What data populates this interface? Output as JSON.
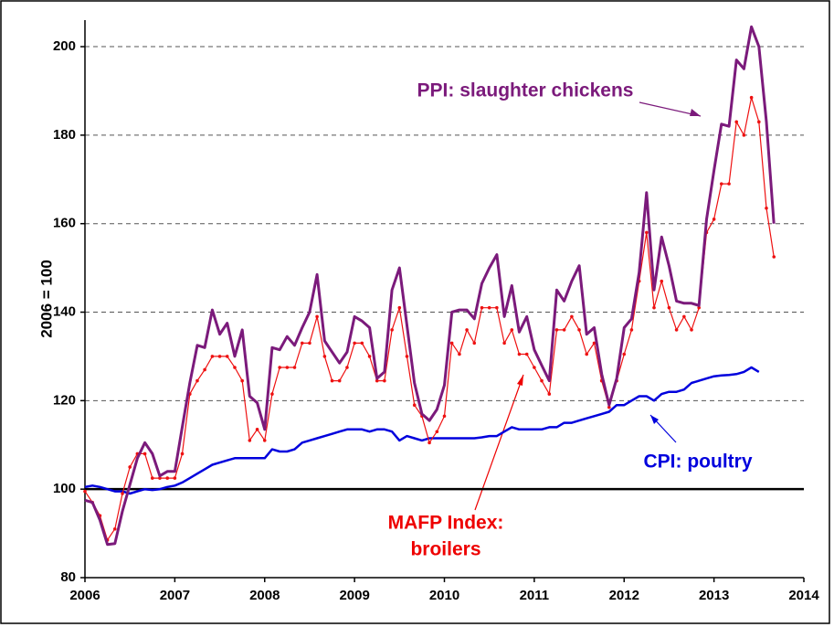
{
  "chart_data": {
    "type": "line",
    "ylabel": "2006 = 100",
    "annotations": [
      {
        "text": "PPI: slaughter chickens",
        "color": "#7b1a7b"
      },
      {
        "text": "CPI: poultry",
        "color": "#0000dd"
      },
      {
        "text": "MAFP Index:",
        "color": "#ee0000"
      },
      {
        "text": "broilers",
        "color": "#ee0000"
      }
    ],
    "x": [
      2006,
      2006.083,
      2006.167,
      2006.25,
      2006.333,
      2006.417,
      2006.5,
      2006.583,
      2006.667,
      2006.75,
      2006.833,
      2006.917,
      2007,
      2007.083,
      2007.167,
      2007.25,
      2007.333,
      2007.417,
      2007.5,
      2007.583,
      2007.667,
      2007.75,
      2007.833,
      2007.917,
      2008,
      2008.083,
      2008.167,
      2008.25,
      2008.333,
      2008.417,
      2008.5,
      2008.583,
      2008.667,
      2008.75,
      2008.833,
      2008.917,
      2009,
      2009.083,
      2009.167,
      2009.25,
      2009.333,
      2009.417,
      2009.5,
      2009.583,
      2009.667,
      2009.75,
      2009.833,
      2009.917,
      2010,
      2010.083,
      2010.167,
      2010.25,
      2010.333,
      2010.417,
      2010.5,
      2010.583,
      2010.667,
      2010.75,
      2010.833,
      2010.917,
      2011,
      2011.083,
      2011.167,
      2011.25,
      2011.333,
      2011.417,
      2011.5,
      2011.583,
      2011.667,
      2011.75,
      2011.833,
      2011.917,
      2012,
      2012.083,
      2012.167,
      2012.25,
      2012.333,
      2012.417,
      2012.5,
      2012.583,
      2012.667,
      2012.75,
      2012.833,
      2012.917,
      2013,
      2013.083,
      2013.167,
      2013.25,
      2013.333,
      2013.417,
      2013.5,
      2013.583,
      2013.667
    ],
    "series": [
      {
        "name": "PPI: slaughter chickens",
        "color": "#7b1a7b",
        "width": 3,
        "values": [
          97.5,
          97,
          93,
          87.5,
          87.7,
          95,
          101,
          107,
          110.5,
          108,
          103,
          104,
          104,
          114,
          124,
          132.5,
          132,
          140.5,
          135,
          137.5,
          130,
          136,
          121,
          119.5,
          113.5,
          132,
          131.5,
          134.5,
          132.5,
          136.5,
          140,
          148.5,
          133.5,
          131,
          128.5,
          131,
          139,
          138,
          136.5,
          125,
          126.5,
          145,
          150,
          137,
          124,
          117,
          115.5,
          118,
          123.5,
          140,
          140.5,
          140.5,
          138.5,
          146.5,
          150,
          153,
          139,
          146,
          135.5,
          139,
          131.5,
          128,
          124.5,
          145,
          142.5,
          147,
          150.5,
          135,
          136.5,
          126,
          119,
          125,
          136.5,
          138.5,
          149,
          167,
          145,
          157,
          150.5,
          142.5,
          142,
          142,
          141.5,
          161,
          172,
          182.5,
          182,
          197,
          195,
          204.5,
          200,
          183,
          160
        ]
      },
      {
        "name": "MAFP Index: broilers",
        "color": "#ee1111",
        "width": 1.2,
        "values": [
          99.5,
          97,
          94,
          88.5,
          91,
          99,
          105,
          108,
          108,
          102.5,
          102.5,
          102.5,
          102.5,
          108,
          121.5,
          124.5,
          127,
          130,
          130,
          130,
          127.5,
          124.5,
          111,
          113.5,
          111,
          121.5,
          127.5,
          127.5,
          127.5,
          133,
          133,
          139,
          130,
          124.5,
          124.5,
          127.5,
          133,
          133,
          130,
          124.5,
          124.5,
          136,
          141,
          130,
          119,
          116.5,
          110.5,
          113,
          116.5,
          133,
          130.5,
          136,
          133,
          141,
          141,
          141,
          133,
          136,
          130.5,
          130.5,
          127.5,
          124.5,
          121.5,
          136,
          136,
          139,
          136,
          130.5,
          133,
          124.5,
          118.5,
          124.5,
          130.5,
          136,
          147,
          158,
          141,
          147,
          141,
          136,
          139,
          136,
          141,
          158,
          161,
          169,
          169,
          183,
          180,
          188.5,
          183,
          163.5,
          152.5
        ]
      },
      {
        "name": "CPI: poultry",
        "color": "#0000dd",
        "width": 2.5,
        "values": [
          100.5,
          100.8,
          100.5,
          100,
          99.5,
          99.5,
          99,
          99.5,
          100,
          99.8,
          100,
          100.5,
          100.8,
          101.5,
          102.5,
          103.5,
          104.5,
          105.5,
          106,
          106.5,
          107,
          107,
          107,
          107,
          107,
          109,
          108.5,
          108.5,
          109,
          110.5,
          111,
          111.5,
          112,
          112.5,
          113,
          113.5,
          113.5,
          113.5,
          113,
          113.5,
          113.5,
          113,
          111,
          112,
          111.5,
          111,
          111.5,
          111.5,
          111.5,
          111.5,
          111.5,
          111.5,
          111.5,
          111.7,
          112,
          112,
          113,
          114,
          113.5,
          113.5,
          113.5,
          113.5,
          114,
          114,
          115,
          115,
          115.5,
          116,
          116.5,
          117,
          117.5,
          119,
          119,
          120,
          121,
          121,
          120,
          121.5,
          122,
          122,
          122.5,
          124,
          124.5,
          125,
          125.5,
          125.7,
          125.8,
          126,
          126.5,
          127.5,
          126.5,
          null,
          null
        ]
      }
    ],
    "xlim": [
      2006,
      2014
    ],
    "xticks": [
      2006,
      2007,
      2008,
      2009,
      2010,
      2011,
      2012,
      2013,
      2014
    ],
    "ylim": [
      80,
      206
    ],
    "yticks": [
      80,
      100,
      120,
      140,
      160,
      180,
      200
    ],
    "reference_line": 100,
    "grid": true
  }
}
